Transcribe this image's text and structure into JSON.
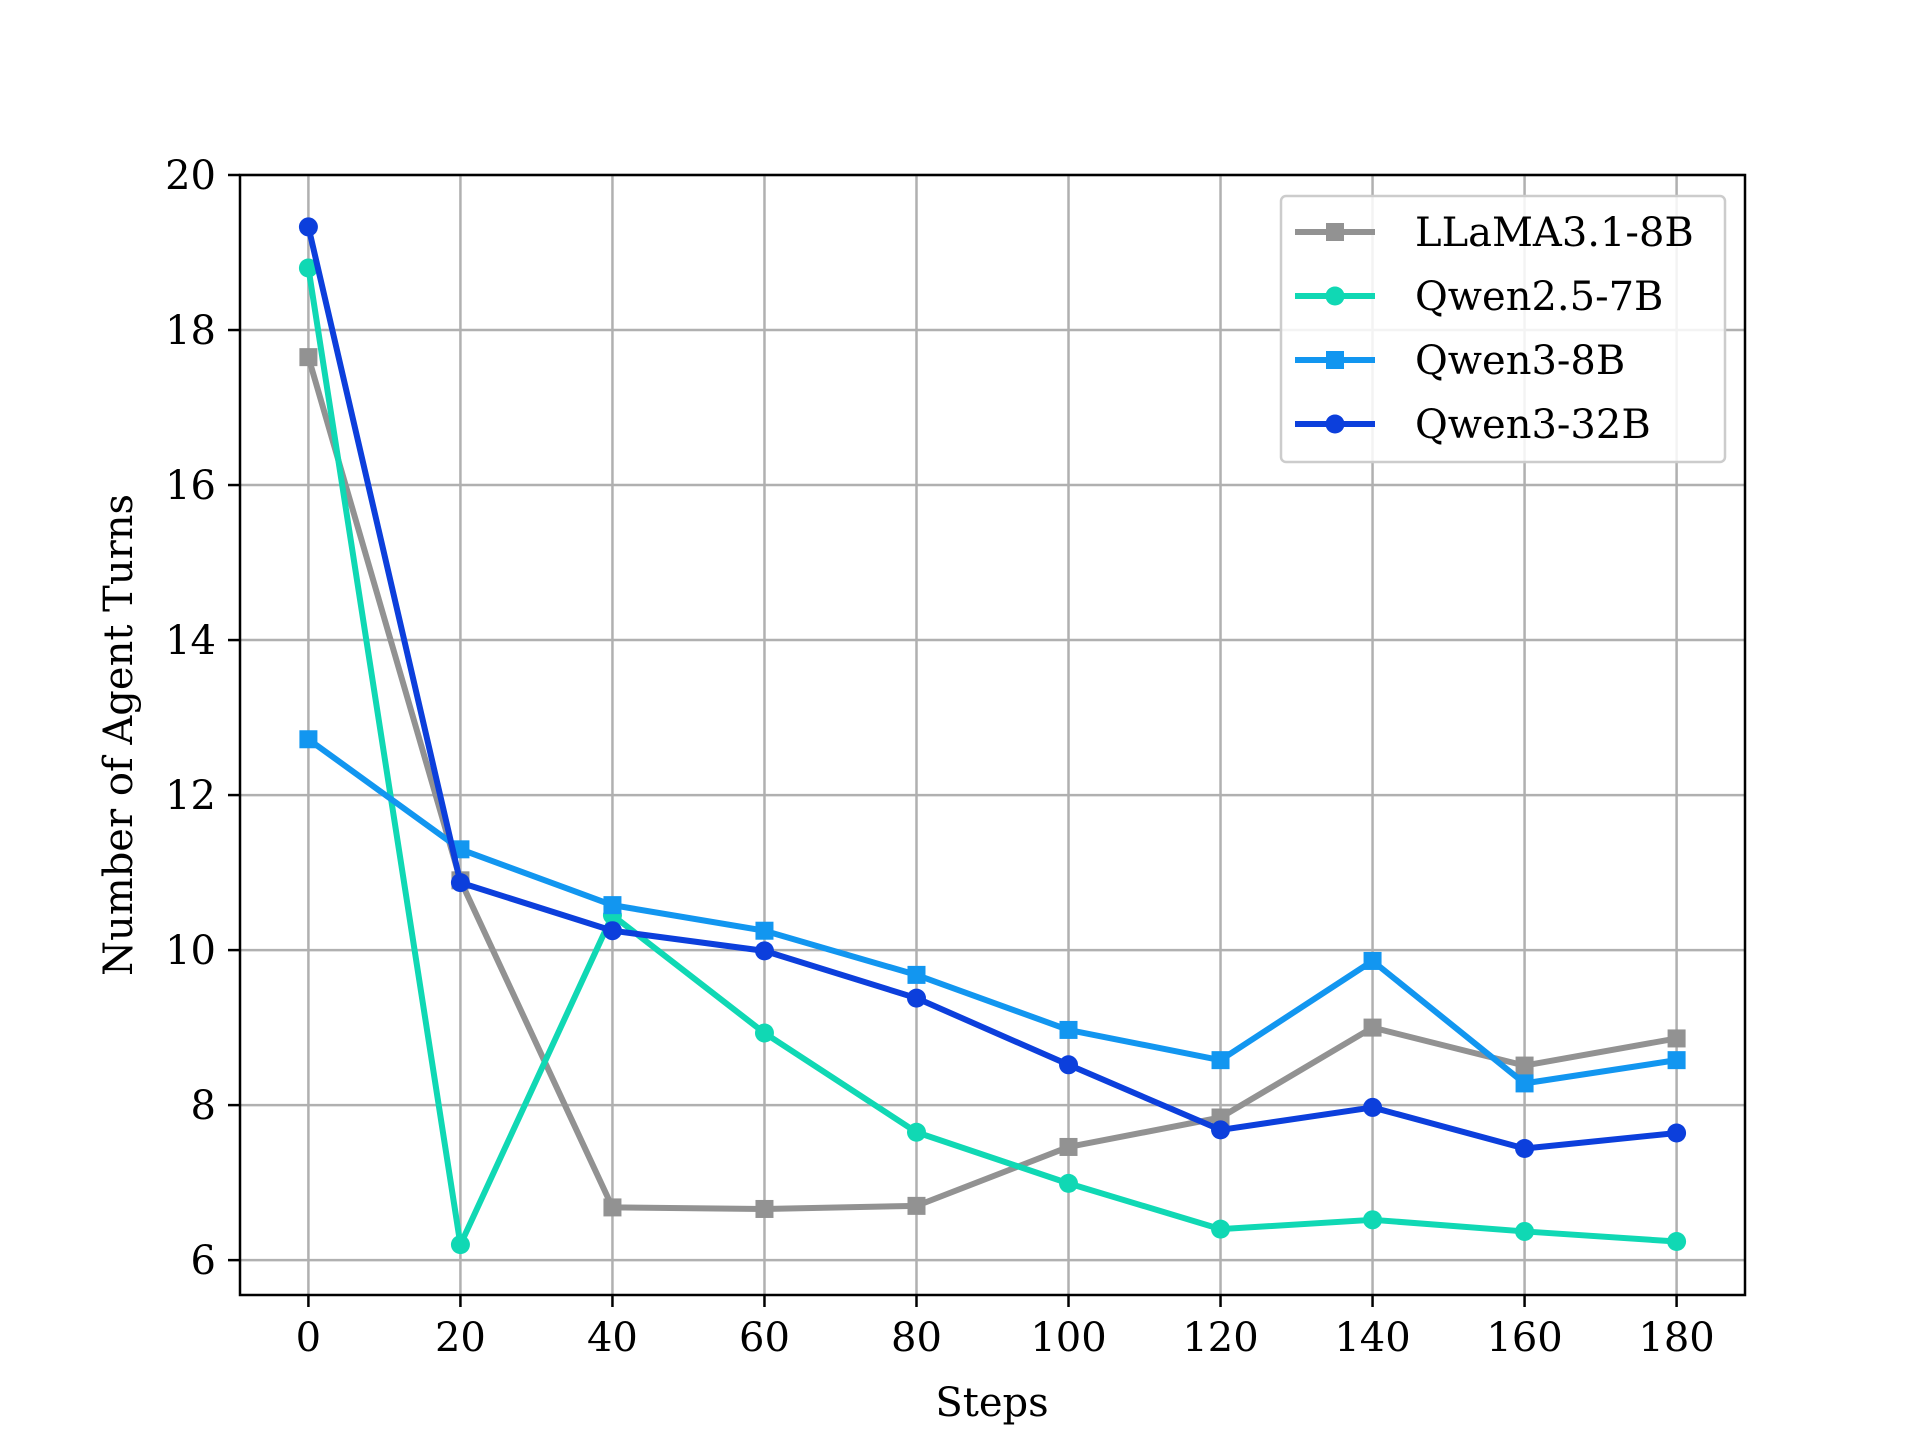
{
  "chart_data": {
    "type": "line",
    "title": "",
    "xlabel": "Steps",
    "ylabel": "Number of Agent Turns",
    "x": [
      0,
      20,
      40,
      60,
      80,
      100,
      120,
      140,
      160,
      180
    ],
    "xlim": [
      -9,
      189
    ],
    "ylim": [
      5.55,
      20
    ],
    "xticks": [
      "0",
      "20",
      "40",
      "60",
      "80",
      "100",
      "120",
      "140",
      "160",
      "180"
    ],
    "yticks": [
      "6",
      "8",
      "10",
      "12",
      "14",
      "16",
      "18",
      "20"
    ],
    "grid": true,
    "legend_position": "top-right",
    "series": [
      {
        "name": "LLaMA3.1-8B",
        "color": "#929292",
        "marker": "square",
        "values": [
          17.65,
          10.9,
          6.68,
          6.66,
          6.7,
          7.46,
          7.84,
          9.0,
          8.51,
          8.86
        ]
      },
      {
        "name": "Qwen2.5-7B",
        "color": "#10d8b4",
        "marker": "circle",
        "values": [
          18.8,
          6.2,
          10.45,
          8.93,
          7.65,
          6.99,
          6.4,
          6.52,
          6.37,
          6.24
        ]
      },
      {
        "name": "Qwen3-8B",
        "color": "#1296f0",
        "marker": "square",
        "values": [
          12.72,
          11.3,
          10.58,
          10.25,
          9.68,
          8.97,
          8.58,
          9.86,
          8.28,
          8.58
        ]
      },
      {
        "name": "Qwen3-32B",
        "color": "#0c3fdc",
        "marker": "circle",
        "values": [
          19.33,
          10.87,
          10.25,
          9.99,
          9.38,
          8.52,
          7.68,
          7.97,
          7.44,
          7.64
        ]
      }
    ]
  }
}
